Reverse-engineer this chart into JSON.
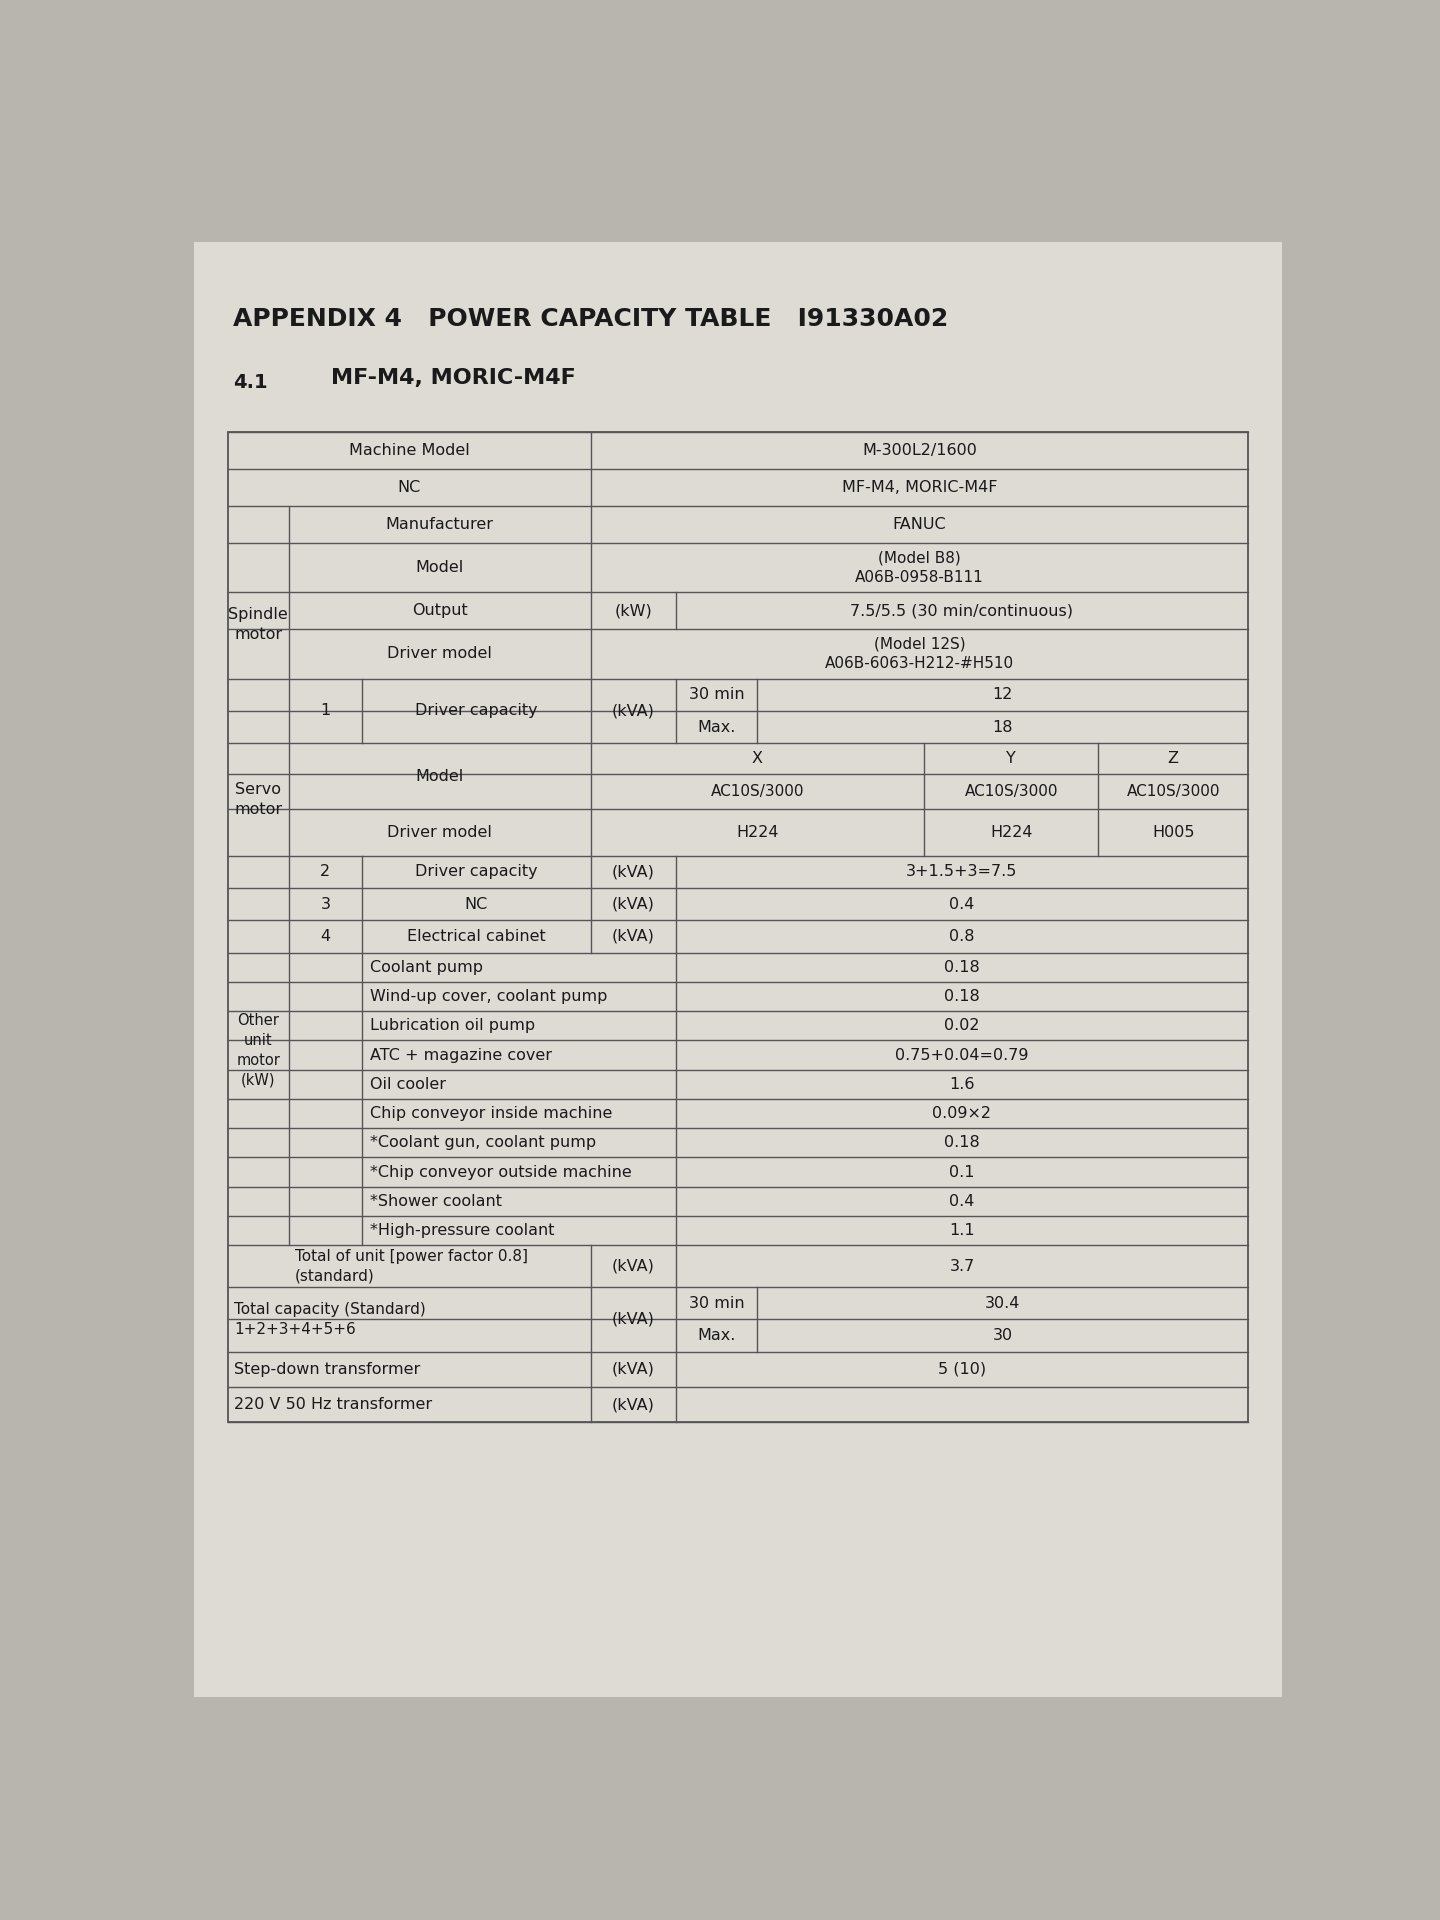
{
  "bg_color": "#b8b4ae",
  "page_color": "#dedad4",
  "line_color": "#555555",
  "text_color": "#1a1a1a",
  "title": "APPENDIX 4   POWER CAPACITY TABLE   I91330A02",
  "section_num": "4.1",
  "section_title": "MF-M4, MORIC-M4F",
  "fs_title": 18,
  "fs_section": 14,
  "fs_body": 11.5
}
